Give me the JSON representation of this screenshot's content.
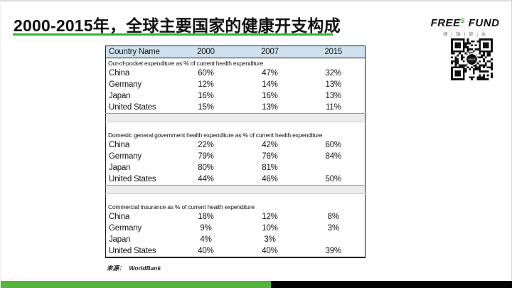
{
  "title": "2000-2015年，全球主要国家的健康开支构成",
  "logo": {
    "free": "FREE",
    "sup": "S",
    "fund": "FUND",
    "subtitle": "峰 | 瑞 | 资 | 本",
    "qr_center": "FREES"
  },
  "source": {
    "label": "来源：",
    "value": "WorldBank"
  },
  "colors": {
    "accent_green": "#2eb52c",
    "bar_green": "#55b43c",
    "bar_black": "#000000",
    "header_blue": "#cfe0ee",
    "spacer_gray": "#ececec",
    "logo_sup_green": "#35b32e"
  },
  "chart_data": {
    "type": "table",
    "title": "2000-2015年，全球主要国家的健康开支构成",
    "columns": [
      "Country Name",
      "2000",
      "2007",
      "2015"
    ],
    "sections": [
      {
        "label": "Out-of-pocket expenditure as % of current health expenditure",
        "rows": [
          {
            "country": "China",
            "values": [
              "60%",
              "47%",
              "32%"
            ]
          },
          {
            "country": "Germany",
            "values": [
              "12%",
              "14%",
              "13%"
            ]
          },
          {
            "country": "Japan",
            "values": [
              "16%",
              "16%",
              "13%"
            ]
          },
          {
            "country": "United States",
            "values": [
              "15%",
              "13%",
              "11%"
            ]
          }
        ]
      },
      {
        "label": "Domestic general government health expenditure as % of current health expenditure",
        "rows": [
          {
            "country": "China",
            "values": [
              "22%",
              "42%",
              "60%"
            ]
          },
          {
            "country": "Germany",
            "values": [
              "79%",
              "76%",
              "84%"
            ]
          },
          {
            "country": "Japan",
            "values": [
              "80%",
              "81%",
              ""
            ]
          },
          {
            "country": "United States",
            "values": [
              "44%",
              "46%",
              "50%"
            ]
          }
        ]
      },
      {
        "label": "Commercial Insurance as % of current health expenditure",
        "rows": [
          {
            "country": "China",
            "values": [
              "18%",
              "12%",
              "8%"
            ]
          },
          {
            "country": "Germany",
            "values": [
              "9%",
              "10%",
              "3%"
            ]
          },
          {
            "country": "Japan",
            "values": [
              "4%",
              "3%",
              ""
            ]
          },
          {
            "country": "United States",
            "values": [
              "40%",
              "40%",
              "39%"
            ]
          }
        ]
      }
    ],
    "source": "WorldBank"
  }
}
